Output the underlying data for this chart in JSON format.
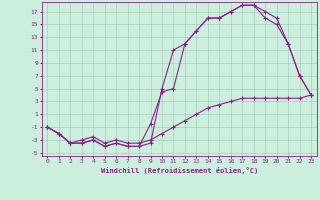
{
  "xlabel": "Windchill (Refroidissement éolien,°C)",
  "bg_color": "#cceedd",
  "grid_color": "#aaccbb",
  "line_color": "#882288",
  "x_ticks": [
    0,
    1,
    2,
    3,
    4,
    5,
    6,
    7,
    8,
    9,
    10,
    11,
    12,
    13,
    14,
    15,
    16,
    17,
    18,
    19,
    20,
    21,
    22,
    23
  ],
  "y_ticks": [
    -5,
    -3,
    -1,
    1,
    3,
    5,
    7,
    9,
    11,
    13,
    15,
    17
  ],
  "xlim": [
    -0.5,
    23.5
  ],
  "ylim": [
    -5.5,
    18.5
  ],
  "line1_x": [
    0,
    1,
    2,
    3,
    4,
    5,
    6,
    7,
    8,
    9,
    10,
    11,
    12,
    13,
    14,
    15,
    16,
    17,
    18,
    19,
    20,
    21,
    22,
    23
  ],
  "line1_y": [
    -1,
    -2,
    -3.5,
    -3.5,
    -3,
    -4,
    -3.5,
    -4,
    -4,
    -3.5,
    5,
    11,
    12,
    14,
    16,
    16,
    17,
    18,
    18,
    17,
    16,
    12,
    7,
    4
  ],
  "line2_x": [
    0,
    1,
    2,
    3,
    4,
    5,
    6,
    7,
    8,
    9,
    10,
    11,
    12,
    13,
    14,
    15,
    16,
    17,
    18,
    19,
    20,
    21,
    22,
    23
  ],
  "line2_y": [
    -1,
    -2,
    -3.5,
    -3.5,
    -3,
    -4,
    -3.5,
    -4,
    -4,
    -0.5,
    4.5,
    5,
    12,
    14,
    16,
    16,
    17,
    18,
    18,
    16,
    15,
    12,
    7,
    4
  ],
  "line3_x": [
    0,
    1,
    2,
    3,
    4,
    5,
    6,
    7,
    8,
    9,
    10,
    11,
    12,
    13,
    14,
    15,
    16,
    17,
    18,
    19,
    20,
    21,
    22,
    23
  ],
  "line3_y": [
    -1,
    -2,
    -3.5,
    -3,
    -2.5,
    -3.5,
    -3,
    -3.5,
    -3.5,
    -3,
    -2,
    -1,
    0,
    1,
    2,
    2.5,
    3,
    3.5,
    3.5,
    3.5,
    3.5,
    3.5,
    3.5,
    4
  ]
}
